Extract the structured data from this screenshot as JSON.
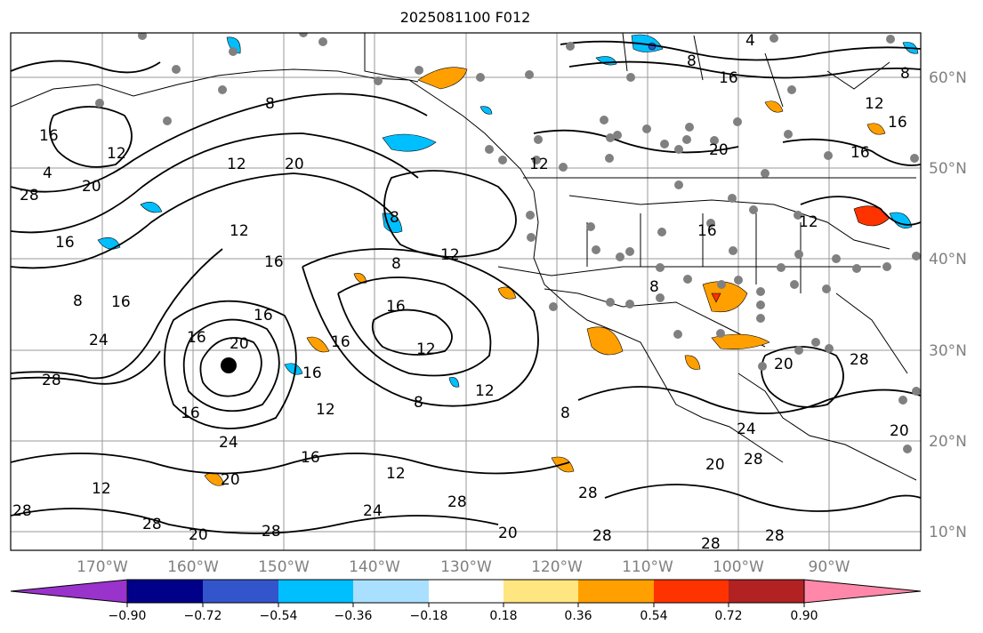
{
  "title": "2025081100 F012",
  "lat_labels": [
    "60°N",
    "50°N",
    "40°N",
    "30°N",
    "20°N",
    "10°N"
  ],
  "lon_labels": [
    "170°W",
    "160°W",
    "150°W",
    "140°W",
    "130°W",
    "120°W",
    "110°W",
    "100°W",
    "90°W"
  ],
  "colorbar": {
    "colors": [
      "#9933cc",
      "#000088",
      "#3355cc",
      "#00bfff",
      "#aae0ff",
      "#ffffff",
      "#ffe680",
      "#ffa000",
      "#ff3300",
      "#b22222",
      "#ff88aa"
    ],
    "ticks": [
      "−0.90",
      "−0.72",
      "−0.54",
      "−0.36",
      "−0.18",
      "0.18",
      "0.36",
      "0.54",
      "0.72",
      "0.90"
    ]
  },
  "contour_labels": [
    "4",
    "8",
    "12",
    "16",
    "20",
    "24",
    "28"
  ]
}
